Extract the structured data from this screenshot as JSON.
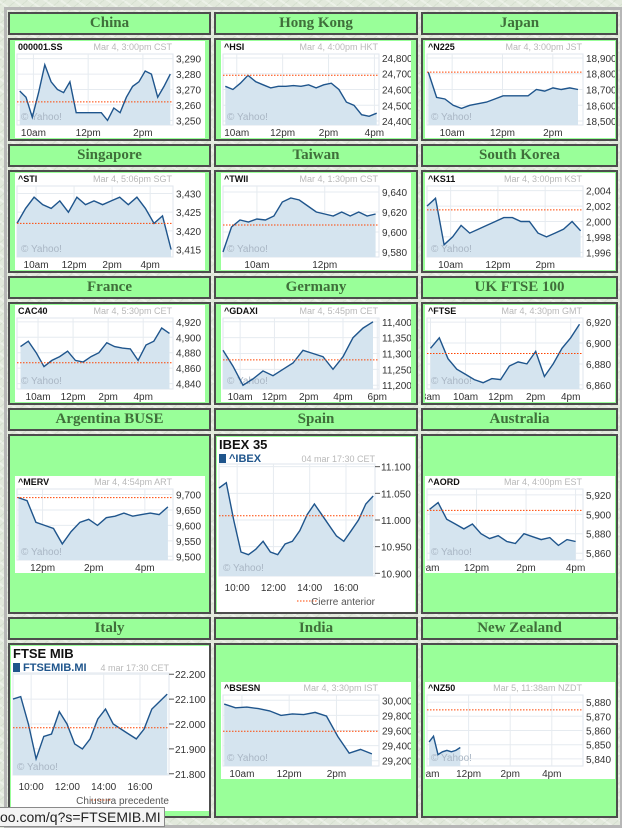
{
  "watermark": "© Yahoo!",
  "status_url": "oo.com/q?s=FTSEMIB.MI",
  "colors": {
    "cell_bg": "#99ff99",
    "header_text": "#3f6f3a",
    "line": "#1f558c",
    "area": "#d5e4ef",
    "prev_close": "#ff4400"
  },
  "cells": [
    {
      "heading": "China"
    },
    {
      "heading": "Hong Kong"
    },
    {
      "heading": "Japan"
    },
    {
      "heading": "Singapore"
    },
    {
      "heading": "Taiwan"
    },
    {
      "heading": "South Korea"
    },
    {
      "heading": "France"
    },
    {
      "heading": "Germany"
    },
    {
      "heading": "UK FTSE 100"
    },
    {
      "heading": "Argentina BUSE"
    },
    {
      "heading": "Spain"
    },
    {
      "heading": "Australia"
    },
    {
      "heading": "Italy"
    },
    {
      "heading": "India"
    },
    {
      "heading": "New Zealand"
    }
  ],
  "chart_data": [
    {
      "type": "line",
      "symbol": "000001.SS",
      "date": "Mar 4, 3:00pm CST",
      "ylim": [
        3247,
        3293
      ],
      "yticks": [
        {
          "v": 3290,
          "label": "3,290"
        },
        {
          "v": 3280,
          "label": "3,280"
        },
        {
          "v": 3270,
          "label": "3,270"
        },
        {
          "v": 3260,
          "label": "3,260"
        },
        {
          "v": 3250,
          "label": "3,250"
        }
      ],
      "xlim": [
        9.4,
        15.1
      ],
      "xticks": [
        {
          "v": 10,
          "label": "10am"
        },
        {
          "v": 12,
          "label": "12pm"
        },
        {
          "v": 14,
          "label": "2pm"
        }
      ],
      "prev_close": 3262,
      "x_start": 9.5,
      "x_end": 15,
      "values": [
        3269,
        3265,
        3252,
        3268,
        3286,
        3275,
        3270,
        3268,
        3275,
        3255,
        3255,
        3255,
        3255,
        3255,
        3250,
        3258,
        3255,
        3265,
        3272,
        3275,
        3282,
        3280,
        3265,
        3272,
        3280
      ]
    },
    {
      "type": "line",
      "symbol": "^HSI",
      "date": "Mar 4, 4:00pm HKT",
      "ylim": [
        24375,
        24825
      ],
      "yticks": [
        {
          "v": 24800,
          "label": "24,800"
        },
        {
          "v": 24700,
          "label": "24,700"
        },
        {
          "v": 24600,
          "label": "24,600"
        },
        {
          "v": 24500,
          "label": "24,500"
        },
        {
          "v": 24400,
          "label": "24,400"
        }
      ],
      "xlim": [
        9.4,
        16.2
      ],
      "xticks": [
        {
          "v": 10,
          "label": "10am"
        },
        {
          "v": 12,
          "label": "12pm"
        },
        {
          "v": 14,
          "label": "2pm"
        },
        {
          "v": 16,
          "label": "4pm"
        }
      ],
      "prev_close": 24690,
      "x_start": 9.5,
      "x_end": 16.1,
      "values": [
        24620,
        24600,
        24640,
        24690,
        24650,
        24630,
        24610,
        24620,
        24620,
        24625,
        24620,
        24630,
        24610,
        24630,
        24640,
        24600,
        24520,
        24500,
        24440,
        24430,
        24450
      ]
    },
    {
      "type": "line",
      "symbol": "^N225",
      "date": "Mar 4, 3:00pm JST",
      "ylim": [
        18475,
        18925
      ],
      "yticks": [
        {
          "v": 18900,
          "label": "18,900"
        },
        {
          "v": 18800,
          "label": "18,800"
        },
        {
          "v": 18700,
          "label": "18,700"
        },
        {
          "v": 18600,
          "label": "18,600"
        },
        {
          "v": 18500,
          "label": "18,500"
        }
      ],
      "xlim": [
        9,
        15.2
      ],
      "xticks": [
        {
          "v": 10,
          "label": "10am"
        },
        {
          "v": 12,
          "label": "12pm"
        },
        {
          "v": 14,
          "label": "2pm"
        }
      ],
      "prev_close": 18810,
      "x_start": 9.05,
      "x_end": 15,
      "values": [
        18810,
        18650,
        18640,
        18600,
        18580,
        18600,
        18610,
        18620,
        18640,
        18660,
        18660,
        18660,
        18660,
        18700,
        18690,
        18710,
        18700,
        18710,
        18700
      ]
    },
    {
      "type": "line",
      "symbol": "^STI",
      "date": "Mar 4, 5:06pm SGT",
      "ylim": [
        3413,
        3432
      ],
      "yticks": [
        {
          "v": 3430,
          "label": "3,430"
        },
        {
          "v": 3425,
          "label": "3,425"
        },
        {
          "v": 3420,
          "label": "3,420"
        },
        {
          "v": 3415,
          "label": "3,415"
        }
      ],
      "xlim": [
        9,
        17.2
      ],
      "xticks": [
        {
          "v": 10,
          "label": "10am"
        },
        {
          "v": 12,
          "label": "12pm"
        },
        {
          "v": 14,
          "label": "2pm"
        },
        {
          "v": 16,
          "label": "4pm"
        }
      ],
      "prev_close": 3422,
      "x_start": 9,
      "x_end": 17.1,
      "values": [
        3422,
        3426,
        3429,
        3427,
        3426,
        3428,
        3425,
        3429,
        3427,
        3428,
        3427,
        3428,
        3429,
        3427,
        3429,
        3426,
        3422,
        3424,
        3415
      ]
    },
    {
      "type": "line",
      "symbol": "^TWII",
      "date": "Mar 4, 1:30pm CST",
      "ylim": [
        9575,
        9646
      ],
      "yticks": [
        {
          "v": 9640,
          "label": "9,640"
        },
        {
          "v": 9620,
          "label": "9,620"
        },
        {
          "v": 9600,
          "label": "9,600"
        },
        {
          "v": 9580,
          "label": "9,580"
        }
      ],
      "xlim": [
        9,
        13.6
      ],
      "xticks": [
        {
          "v": 10,
          "label": "10am"
        },
        {
          "v": 12,
          "label": "12pm"
        }
      ],
      "prev_close": 9607,
      "x_start": 9,
      "x_end": 13.5,
      "values": [
        9580,
        9605,
        9612,
        9610,
        9613,
        9612,
        9616,
        9630,
        9634,
        9632,
        9626,
        9620,
        9618,
        9616,
        9620,
        9616,
        9620,
        9616,
        9618
      ]
    },
    {
      "type": "line",
      "symbol": "^KS11",
      "date": "Mar 4, 3:00pm KST",
      "ylim": [
        1995.4,
        2004.6
      ],
      "yticks": [
        {
          "v": 2004,
          "label": "2,004"
        },
        {
          "v": 2002,
          "label": "2,002"
        },
        {
          "v": 2000,
          "label": "2,000"
        },
        {
          "v": 1998,
          "label": "1,998"
        },
        {
          "v": 1996,
          "label": "1,996"
        }
      ],
      "xlim": [
        9,
        15.6
      ],
      "xticks": [
        {
          "v": 10,
          "label": "10am"
        },
        {
          "v": 12,
          "label": "12pm"
        },
        {
          "v": 14,
          "label": "2pm"
        }
      ],
      "prev_close": 2001.5,
      "x_start": 9,
      "x_end": 15.5,
      "values": [
        2002,
        2003,
        1997,
        1998,
        1999.5,
        1998.5,
        1999,
        1999.5,
        2000,
        2000.5,
        2000.5,
        2000,
        2000,
        1998.5,
        1998,
        1998.5,
        1999,
        2000,
        1998.8
      ]
    },
    {
      "type": "line",
      "symbol": "CAC40",
      "date": "Mar 4, 5:30pm CET",
      "ylim": [
        4833,
        4925
      ],
      "yticks": [
        {
          "v": 4920,
          "label": "4,920"
        },
        {
          "v": 4900,
          "label": "4,900"
        },
        {
          "v": 4880,
          "label": "4,880"
        },
        {
          "v": 4860,
          "label": "4,860"
        },
        {
          "v": 4840,
          "label": "4,840"
        }
      ],
      "xlim": [
        8.8,
        17.7
      ],
      "xticks": [
        {
          "v": 10,
          "label": "10am"
        },
        {
          "v": 12,
          "label": "12pm"
        },
        {
          "v": 14,
          "label": "2pm"
        },
        {
          "v": 16,
          "label": "4pm"
        }
      ],
      "prev_close": 4867,
      "x_start": 9,
      "x_end": 17.5,
      "values": [
        4888,
        4895,
        4880,
        4862,
        4870,
        4875,
        4882,
        4870,
        4868,
        4875,
        4880,
        4893,
        4888,
        4886,
        4885,
        4870,
        4890,
        4895,
        4912,
        4905
      ]
    },
    {
      "type": "line",
      "symbol": "^GDAXI",
      "date": "Mar 4, 5:45pm CET",
      "ylim": [
        11188,
        11412
      ],
      "yticks": [
        {
          "v": 11400,
          "label": "11,400"
        },
        {
          "v": 11350,
          "label": "11,350"
        },
        {
          "v": 11300,
          "label": "11,300"
        },
        {
          "v": 11250,
          "label": "11,250"
        },
        {
          "v": 11200,
          "label": "11,200"
        }
      ],
      "xlim": [
        9,
        18.1
      ],
      "xticks": [
        {
          "v": 10,
          "label": "10am"
        },
        {
          "v": 12,
          "label": "12pm"
        },
        {
          "v": 14,
          "label": "2pm"
        },
        {
          "v": 16,
          "label": "4pm"
        },
        {
          "v": 18,
          "label": "6pm"
        }
      ],
      "prev_close": 11280,
      "x_start": 9,
      "x_end": 17.75,
      "values": [
        11310,
        11260,
        11200,
        11220,
        11245,
        11230,
        11250,
        11270,
        11310,
        11300,
        11290,
        11250,
        11290,
        11350,
        11380,
        11400
      ]
    },
    {
      "type": "line",
      "symbol": "^FTSE",
      "date": "Mar 4, 4:30pm GMT",
      "ylim": [
        6856,
        6924
      ],
      "yticks": [
        {
          "v": 6920,
          "label": "6,920"
        },
        {
          "v": 6900,
          "label": "6,900"
        },
        {
          "v": 6880,
          "label": "6,880"
        },
        {
          "v": 6860,
          "label": "6,860"
        }
      ],
      "xlim": [
        7.8,
        16.7
      ],
      "xticks": [
        {
          "v": 8,
          "label": "8am"
        },
        {
          "v": 10,
          "label": "10am"
        },
        {
          "v": 12,
          "label": "12pm"
        },
        {
          "v": 14,
          "label": "2pm"
        },
        {
          "v": 16,
          "label": "4pm"
        }
      ],
      "prev_close": 6890,
      "x_start": 8,
      "x_end": 16.5,
      "values": [
        6895,
        6905,
        6885,
        6875,
        6870,
        6865,
        6862,
        6866,
        6865,
        6878,
        6882,
        6880,
        6892,
        6868,
        6880,
        6895,
        6905,
        6918
      ]
    },
    {
      "type": "line",
      "symbol": "^MERV",
      "date": "Mar 4, 4:54pm ART",
      "ylim": [
        9488,
        9718
      ],
      "yticks": [
        {
          "v": 9700,
          "label": "9,700"
        },
        {
          "v": 9650,
          "label": "9,650"
        },
        {
          "v": 9600,
          "label": "9,600"
        },
        {
          "v": 9550,
          "label": "9,550"
        },
        {
          "v": 9500,
          "label": "9,500"
        }
      ],
      "xlim": [
        11,
        17.1
      ],
      "xticks": [
        {
          "v": 12,
          "label": "12pm"
        },
        {
          "v": 14,
          "label": "2pm"
        },
        {
          "v": 16,
          "label": "4pm"
        }
      ],
      "prev_close": 9690,
      "x_start": 11.05,
      "x_end": 16.9,
      "values": [
        9690,
        9680,
        9610,
        9600,
        9590,
        9540,
        9580,
        9610,
        9620,
        9600,
        9625,
        9630,
        9640,
        9630,
        9635,
        9640,
        9635,
        9660
      ]
    },
    {
      "type": "line",
      "title": "IBEX 35",
      "symbol": "^IBEX",
      "date": "04 mar 17:30 CET",
      "legend": "Cierre anterior",
      "ylim": [
        10895,
        11105
      ],
      "yticks": [
        {
          "v": 11100,
          "label": "11.100"
        },
        {
          "v": 11050,
          "label": "11.050"
        },
        {
          "v": 11000,
          "label": "11.000"
        },
        {
          "v": 10950,
          "label": "10.950"
        },
        {
          "v": 10900,
          "label": "10.900"
        }
      ],
      "xlim": [
        9,
        17.6
      ],
      "xticks": [
        {
          "v": 10,
          "label": "10:00"
        },
        {
          "v": 12,
          "label": "12:00"
        },
        {
          "v": 14,
          "label": "14:00"
        },
        {
          "v": 16,
          "label": "16:00"
        }
      ],
      "prev_close": 11008,
      "x_start": 9,
      "x_end": 17.5,
      "values": [
        11060,
        11070,
        11000,
        10940,
        10935,
        10945,
        10960,
        10940,
        10935,
        10955,
        10960,
        10980,
        11010,
        11030,
        11010,
        10990,
        10970,
        10960,
        10980,
        11000,
        11030,
        11045
      ]
    },
    {
      "type": "line",
      "symbol": "^AORD",
      "date": "Mar 4, 4:00pm EST",
      "ylim": [
        5853,
        5926
      ],
      "yticks": [
        {
          "v": 5920,
          "label": "5,920"
        },
        {
          "v": 5900,
          "label": "5,900"
        },
        {
          "v": 5880,
          "label": "5,880"
        },
        {
          "v": 5860,
          "label": "5,860"
        }
      ],
      "xlim": [
        10,
        16.3
      ],
      "xticks": [
        {
          "v": 10,
          "label": "10am"
        },
        {
          "v": 12,
          "label": "12pm"
        },
        {
          "v": 14,
          "label": "2pm"
        },
        {
          "v": 16,
          "label": "4pm"
        }
      ],
      "prev_close": 5904,
      "x_start": 10.1,
      "x_end": 16,
      "values": [
        5905,
        5912,
        5895,
        5890,
        5885,
        5890,
        5880,
        5875,
        5878,
        5872,
        5870,
        5880,
        5877,
        5874,
        5876,
        5868,
        5874,
        5872
      ]
    },
    {
      "type": "line",
      "title": "FTSE MIB",
      "symbol": "FTSEMIB.MI",
      "date": "4 mar 17:30 CET",
      "legend": "Chiusura precedente",
      "ylim": [
        21795,
        22205
      ],
      "yticks": [
        {
          "v": 22200,
          "label": "22.200"
        },
        {
          "v": 22100,
          "label": "22.100"
        },
        {
          "v": 22000,
          "label": "22.000"
        },
        {
          "v": 21900,
          "label": "21.900"
        },
        {
          "v": 21800,
          "label": "21.800"
        }
      ],
      "xlim": [
        9,
        17.6
      ],
      "xticks": [
        {
          "v": 10,
          "label": "10:00"
        },
        {
          "v": 12,
          "label": "12:00"
        },
        {
          "v": 14,
          "label": "14:00"
        },
        {
          "v": 16,
          "label": "16:00"
        }
      ],
      "prev_close": 21985,
      "x_start": 9,
      "x_end": 17.5,
      "values": [
        22100,
        22110,
        22000,
        21860,
        21950,
        21960,
        22050,
        22000,
        21920,
        21900,
        21940,
        22020,
        22060,
        22000,
        21980,
        21960,
        21940,
        21980,
        22060,
        22090,
        22120
      ]
    },
    {
      "type": "line",
      "symbol": "^BSESN",
      "date": "Mar 4, 3:30pm IST",
      "ylim": [
        29130,
        30070
      ],
      "yticks": [
        {
          "v": 30000,
          "label": "30,000"
        },
        {
          "v": 29800,
          "label": "29,800"
        },
        {
          "v": 29600,
          "label": "29,600"
        },
        {
          "v": 29400,
          "label": "29,400"
        },
        {
          "v": 29200,
          "label": "29,200"
        }
      ],
      "xlim": [
        9.2,
        15.8
      ],
      "xticks": [
        {
          "v": 10,
          "label": "10am"
        },
        {
          "v": 12,
          "label": "12pm"
        },
        {
          "v": 14,
          "label": "2pm"
        }
      ],
      "prev_close": 29590,
      "x_start": 9.25,
      "x_end": 15.5,
      "values": [
        29950,
        29900,
        29910,
        29890,
        29860,
        29800,
        29820,
        29810,
        29840,
        29790,
        29520,
        29300,
        29350,
        29290
      ]
    },
    {
      "type": "line",
      "symbol": "^NZ50",
      "date": "Mar 5, 11:38am NZDT",
      "ylim": [
        5835,
        5885
      ],
      "yticks": [
        {
          "v": 5880,
          "label": "5,880"
        },
        {
          "v": 5870,
          "label": "5,870"
        },
        {
          "v": 5860,
          "label": "5,860"
        },
        {
          "v": 5850,
          "label": "5,850"
        },
        {
          "v": 5840,
          "label": "5,840"
        }
      ],
      "xlim": [
        10,
        17.5
      ],
      "xticks": [
        {
          "v": 10,
          "label": "10am"
        },
        {
          "v": 12,
          "label": "12pm"
        },
        {
          "v": 14,
          "label": "2pm"
        },
        {
          "v": 16,
          "label": "4pm"
        }
      ],
      "prev_close": 5874.5,
      "x_start": 10.1,
      "x_end": 11.6,
      "values": [
        5852,
        5856,
        5843,
        5845,
        5846,
        5845,
        5846,
        5848
      ]
    }
  ]
}
